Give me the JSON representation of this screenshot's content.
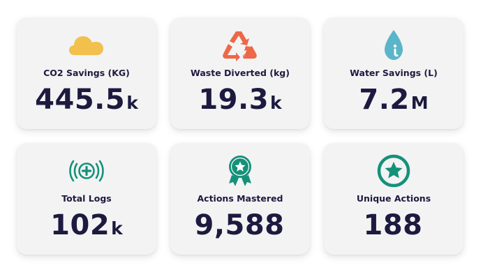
{
  "colors": {
    "card_bg": "#f3f3f4",
    "text_dark": "#1d1a3f",
    "cloud_yellow": "#f2c04c",
    "recycle_orange": "#ec6847",
    "water_blue": "#5bb5c8",
    "green": "#15917a"
  },
  "stats": [
    {
      "icon": "cloud-icon",
      "label": "CO2 Savings (KG)",
      "value": "445.5",
      "suffix": "k"
    },
    {
      "icon": "recycle-icon",
      "label": "Waste Diverted (kg)",
      "value": "19.3",
      "suffix": "k"
    },
    {
      "icon": "water-drop-icon",
      "label": "Water Savings (L)",
      "value": "7.2",
      "suffix": "M"
    },
    {
      "icon": "broadcast-plus-icon",
      "label": "Total Logs",
      "value": "102",
      "suffix": "k"
    },
    {
      "icon": "award-ribbon-star-icon",
      "label": "Actions Mastered",
      "value": "9,588",
      "suffix": ""
    },
    {
      "icon": "star-circle-icon",
      "label": "Unique Actions",
      "value": "188",
      "suffix": ""
    }
  ]
}
